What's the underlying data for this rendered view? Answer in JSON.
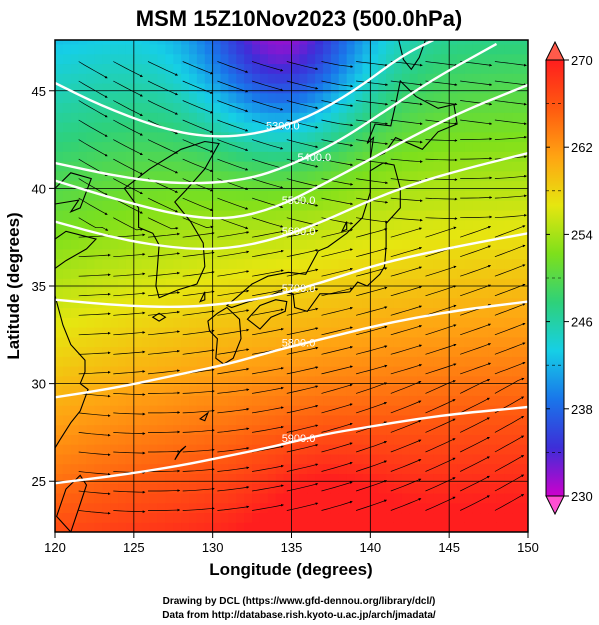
{
  "chart_data": {
    "type": "heatmap",
    "title": "MSM 15Z10Nov2023 (500.0hPa)",
    "xlabel": "Longitude (degrees)",
    "ylabel": "Latitude  (degrees)",
    "xlim": [
      120,
      150
    ],
    "ylim": [
      22.4,
      47.6
    ],
    "x_ticks": [
      120,
      125,
      130,
      135,
      140,
      145,
      150
    ],
    "y_ticks": [
      25,
      30,
      35,
      40,
      45
    ],
    "colorbar": {
      "min": 230,
      "max": 270,
      "ticks": [
        230,
        238,
        246,
        254,
        262,
        270
      ],
      "colors": [
        "#cc00cc",
        "#3d2ed8",
        "#1976ea",
        "#16cfe6",
        "#2ed17a",
        "#7ee01b",
        "#e6e610",
        "#ffa412",
        "#ff5a10",
        "#ff1e1e"
      ]
    },
    "contours": [
      {
        "label": "5300.0",
        "points": [
          [
            120,
            45.4
          ],
          [
            123,
            44.2
          ],
          [
            127,
            43.0
          ],
          [
            130,
            42.6
          ],
          [
            133,
            42.8
          ],
          [
            136,
            43.6
          ],
          [
            139,
            45.0
          ],
          [
            142,
            46.8
          ],
          [
            144,
            47.6
          ]
        ]
      },
      {
        "label": "5400.0",
        "points": [
          [
            120,
            41.3
          ],
          [
            124,
            40.6
          ],
          [
            128,
            40.2
          ],
          [
            132,
            40.4
          ],
          [
            135,
            41.2
          ],
          [
            138,
            42.4
          ],
          [
            141,
            44.0
          ],
          [
            144,
            45.6
          ],
          [
            148,
            47.4
          ]
        ]
      },
      {
        "label": "5500.0",
        "points": [
          [
            120,
            40.4
          ],
          [
            124,
            39.4
          ],
          [
            128,
            38.6
          ],
          [
            131,
            38.4
          ],
          [
            134,
            39.0
          ],
          [
            137,
            40.2
          ],
          [
            140,
            41.5
          ],
          [
            143,
            42.8
          ],
          [
            146,
            44.0
          ],
          [
            150,
            45.3
          ]
        ]
      },
      {
        "label": "5600.0",
        "points": [
          [
            120,
            38.3
          ],
          [
            124,
            37.4
          ],
          [
            128,
            36.9
          ],
          [
            131,
            36.9
          ],
          [
            134,
            37.4
          ],
          [
            137,
            38.3
          ],
          [
            140,
            39.4
          ],
          [
            143,
            40.3
          ],
          [
            146,
            41.0
          ],
          [
            150,
            41.8
          ]
        ]
      },
      {
        "label": "5700.0",
        "points": [
          [
            120,
            34.3
          ],
          [
            124,
            34.0
          ],
          [
            128,
            33.9
          ],
          [
            131,
            34.1
          ],
          [
            134,
            34.5
          ],
          [
            137,
            35.2
          ],
          [
            140,
            36.0
          ],
          [
            143,
            36.6
          ],
          [
            146,
            37.1
          ],
          [
            150,
            37.7
          ]
        ]
      },
      {
        "label": "5800.0",
        "points": [
          [
            120,
            29.3
          ],
          [
            124,
            29.8
          ],
          [
            128,
            30.5
          ],
          [
            131,
            31.0
          ],
          [
            134,
            31.7
          ],
          [
            137,
            32.3
          ],
          [
            140,
            32.9
          ],
          [
            143,
            33.4
          ],
          [
            146,
            33.8
          ],
          [
            150,
            34.2
          ]
        ]
      },
      {
        "label": "5900.0",
        "points": [
          [
            120,
            24.9
          ],
          [
            124,
            25.3
          ],
          [
            128,
            25.8
          ],
          [
            131,
            26.3
          ],
          [
            134,
            26.8
          ],
          [
            137,
            27.4
          ],
          [
            140,
            27.8
          ],
          [
            143,
            28.2
          ],
          [
            146,
            28.5
          ],
          [
            150,
            28.8
          ]
        ]
      }
    ],
    "grid": true,
    "legend": "colorbar-right"
  },
  "credits": {
    "line1": "Drawing by DCL (https://www.gfd-dennou.org/library/dcl/)",
    "line2": "Data from http://database.rish.kyoto-u.ac.jp/arch/jmadata/"
  }
}
